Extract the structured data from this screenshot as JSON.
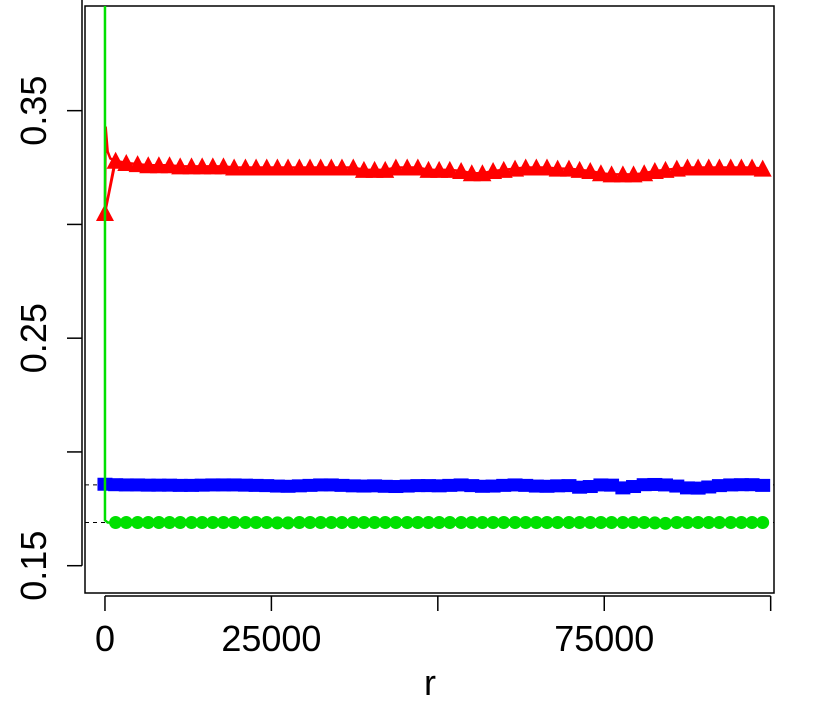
{
  "chart_data": {
    "type": "line",
    "title": "",
    "xlabel": "r",
    "ylabel": "",
    "xlim": [
      -3000,
      100500
    ],
    "ylim": [
      0.138,
      0.396
    ],
    "x_ticks": [
      0,
      25000,
      50000,
      75000,
      100000
    ],
    "x_tick_labels": [
      "0",
      "25000",
      "",
      "75000",
      ""
    ],
    "y_ticks": [
      0.15,
      0.2,
      0.25,
      0.3,
      0.35,
      0.4
    ],
    "y_tick_labels": [
      "0.15",
      "",
      "0.25",
      "",
      "0.35",
      ""
    ],
    "reference_lines": [
      0.1855,
      0.169
    ],
    "grid": false,
    "series": [
      {
        "color": "#ff0000",
        "marker": "triangle",
        "initial": [
          [
            0,
            0.305
          ],
          [
            100,
            0.343
          ],
          [
            400,
            0.332
          ],
          [
            800,
            0.329
          ],
          [
            1500,
            0.328
          ]
        ],
        "x": [
          0,
          1600,
          3200,
          4900,
          6500,
          8100,
          9700,
          11300,
          13000,
          14600,
          16200,
          17800,
          19400,
          21100,
          22700,
          24300,
          25900,
          27500,
          29200,
          30800,
          32400,
          34000,
          35600,
          37300,
          38900,
          40500,
          42100,
          43700,
          45400,
          47000,
          48600,
          50200,
          51800,
          53500,
          55100,
          56700,
          58300,
          59900,
          61600,
          63200,
          64800,
          66400,
          68000,
          69700,
          71300,
          72900,
          74500,
          76100,
          77800,
          79400,
          81000,
          82600,
          84200,
          85900,
          87500,
          89100,
          90700,
          92300,
          94000,
          95600,
          97200,
          98800
        ],
        "values": [
          0.305,
          0.328,
          0.327,
          0.3265,
          0.326,
          0.326,
          0.326,
          0.3255,
          0.3255,
          0.3255,
          0.3255,
          0.3255,
          0.325,
          0.325,
          0.325,
          0.325,
          0.325,
          0.325,
          0.325,
          0.325,
          0.325,
          0.325,
          0.325,
          0.325,
          0.324,
          0.324,
          0.324,
          0.325,
          0.325,
          0.325,
          0.324,
          0.324,
          0.324,
          0.3235,
          0.3225,
          0.3225,
          0.3235,
          0.324,
          0.3245,
          0.325,
          0.325,
          0.325,
          0.3245,
          0.3245,
          0.324,
          0.3235,
          0.3225,
          0.322,
          0.322,
          0.322,
          0.3225,
          0.3235,
          0.324,
          0.3245,
          0.325,
          0.325,
          0.325,
          0.325,
          0.325,
          0.325,
          0.325,
          0.3245
        ]
      },
      {
        "color": "#0000ff",
        "marker": "square",
        "initial": [],
        "x": [
          0,
          1600,
          3200,
          4900,
          6500,
          8100,
          9700,
          11300,
          13000,
          14600,
          16200,
          17800,
          19400,
          21100,
          22700,
          24300,
          25900,
          27500,
          29200,
          30800,
          32400,
          34000,
          35600,
          37300,
          38900,
          40500,
          42100,
          43700,
          45400,
          47000,
          48600,
          50200,
          51800,
          53500,
          55100,
          56700,
          58300,
          59900,
          61600,
          63200,
          64800,
          66400,
          68000,
          69700,
          71300,
          72900,
          74500,
          76100,
          77800,
          79400,
          81000,
          82600,
          84200,
          85900,
          87500,
          89100,
          90700,
          92300,
          94000,
          95600,
          97200,
          98800
        ],
        "values": [
          0.1858,
          0.1856,
          0.1855,
          0.1855,
          0.1854,
          0.1854,
          0.1854,
          0.1853,
          0.1853,
          0.1854,
          0.1855,
          0.1855,
          0.1855,
          0.1854,
          0.1853,
          0.1852,
          0.185,
          0.1849,
          0.1851,
          0.1853,
          0.1855,
          0.1855,
          0.1853,
          0.1851,
          0.185,
          0.1851,
          0.1849,
          0.1848,
          0.185,
          0.1852,
          0.1852,
          0.1851,
          0.1853,
          0.1855,
          0.1852,
          0.1849,
          0.185,
          0.1853,
          0.1855,
          0.1853,
          0.185,
          0.1849,
          0.1851,
          0.1852,
          0.1845,
          0.1848,
          0.1855,
          0.1854,
          0.1842,
          0.1848,
          0.1856,
          0.1857,
          0.1855,
          0.185,
          0.1842,
          0.1841,
          0.1846,
          0.1852,
          0.1855,
          0.1856,
          0.1856,
          0.1853
        ]
      },
      {
        "color": "#00e000",
        "marker": "circle",
        "initial": [
          [
            0,
            0.396
          ],
          [
            0,
            0.17
          ],
          [
            400,
            0.169
          ]
        ],
        "x": [
          1600,
          3200,
          4900,
          6500,
          8100,
          9700,
          11300,
          13000,
          14600,
          16200,
          17800,
          19400,
          21100,
          22700,
          24300,
          25900,
          27500,
          29200,
          30800,
          32400,
          34000,
          35600,
          37300,
          38900,
          40500,
          42100,
          43700,
          45400,
          47000,
          48600,
          50200,
          51800,
          53500,
          55100,
          56700,
          58300,
          59900,
          61600,
          63200,
          64800,
          66400,
          68000,
          69700,
          71300,
          72900,
          74500,
          76100,
          77800,
          79400,
          81000,
          82600,
          84200,
          85900,
          87500,
          89100,
          90700,
          92300,
          94000,
          95600,
          97200,
          98800
        ],
        "values": [
          0.169,
          0.169,
          0.169,
          0.169,
          0.169,
          0.169,
          0.169,
          0.169,
          0.169,
          0.169,
          0.169,
          0.169,
          0.169,
          0.169,
          0.169,
          0.1688,
          0.1688,
          0.169,
          0.169,
          0.169,
          0.169,
          0.169,
          0.169,
          0.169,
          0.169,
          0.169,
          0.169,
          0.169,
          0.169,
          0.169,
          0.169,
          0.169,
          0.169,
          0.169,
          0.169,
          0.169,
          0.169,
          0.169,
          0.169,
          0.169,
          0.169,
          0.169,
          0.169,
          0.169,
          0.169,
          0.169,
          0.169,
          0.169,
          0.169,
          0.169,
          0.1688,
          0.1686,
          0.169,
          0.169,
          0.169,
          0.169,
          0.169,
          0.169,
          0.169,
          0.169,
          0.169
        ]
      }
    ]
  }
}
